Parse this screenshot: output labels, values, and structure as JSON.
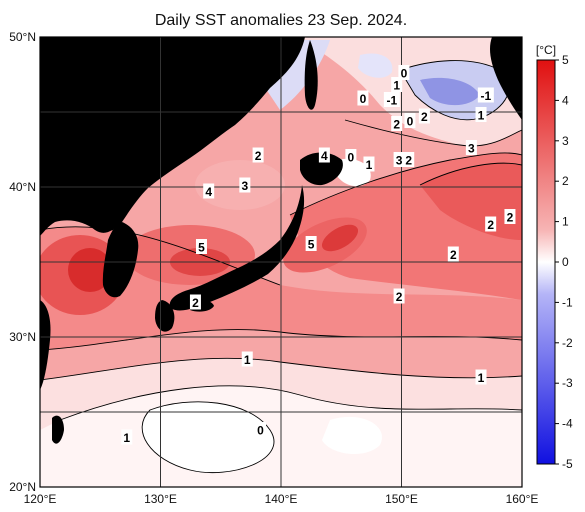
{
  "title": "Daily SST anomalies 23 Sep. 2024.",
  "colorbar": {
    "unit": "[°C]",
    "ticks": [
      "5",
      "4",
      "3",
      "2",
      "1",
      "0",
      "-1",
      "-2",
      "-3",
      "-4",
      "-5"
    ],
    "top_color": "#e01010",
    "mid_color": "#ffffff",
    "bottom_color": "#1010e0"
  },
  "axes": {
    "x_ticks": [
      "120°E",
      "130°E",
      "140°E",
      "150°E",
      "160°E"
    ],
    "y_ticks": [
      "50°N",
      "40°N",
      "30°N",
      "20°N"
    ],
    "lon_range": [
      120,
      160
    ],
    "lat_range": [
      20,
      50
    ]
  },
  "colors": {
    "land": "#505050",
    "grid": "#333333",
    "frame": "#000000"
  },
  "contour_labels": [
    {
      "text": "0",
      "lon": 150.2,
      "lat": 47.6
    },
    {
      "text": "1",
      "lon": 149.6,
      "lat": 46.8
    },
    {
      "text": "0",
      "lon": 146.8,
      "lat": 45.9
    },
    {
      "text": "-1",
      "lon": 149.2,
      "lat": 45.8
    },
    {
      "text": "-1",
      "lon": 157.0,
      "lat": 46.1
    },
    {
      "text": "1",
      "lon": 156.6,
      "lat": 44.8
    },
    {
      "text": "2",
      "lon": 149.6,
      "lat": 44.2
    },
    {
      "text": "0",
      "lon": 150.7,
      "lat": 44.4
    },
    {
      "text": "2",
      "lon": 151.9,
      "lat": 44.7
    },
    {
      "text": "3",
      "lon": 155.8,
      "lat": 42.6
    },
    {
      "text": "2",
      "lon": 138.1,
      "lat": 42.1
    },
    {
      "text": "4",
      "lon": 143.6,
      "lat": 42.1
    },
    {
      "text": "0",
      "lon": 145.8,
      "lat": 42.0
    },
    {
      "text": "1",
      "lon": 147.3,
      "lat": 41.5
    },
    {
      "text": "3",
      "lon": 149.8,
      "lat": 41.8
    },
    {
      "text": "2",
      "lon": 150.6,
      "lat": 41.8
    },
    {
      "text": "3",
      "lon": 137.0,
      "lat": 40.1
    },
    {
      "text": "4",
      "lon": 134.0,
      "lat": 39.7
    },
    {
      "text": "2",
      "lon": 159.0,
      "lat": 38.0
    },
    {
      "text": "2",
      "lon": 157.4,
      "lat": 37.5
    },
    {
      "text": "5",
      "lon": 133.4,
      "lat": 36.0
    },
    {
      "text": "5",
      "lon": 142.5,
      "lat": 36.2
    },
    {
      "text": "2",
      "lon": 154.3,
      "lat": 35.5
    },
    {
      "text": "2",
      "lon": 132.9,
      "lat": 32.3
    },
    {
      "text": "2",
      "lon": 149.8,
      "lat": 32.7
    },
    {
      "text": "1",
      "lon": 137.2,
      "lat": 28.5
    },
    {
      "text": "1",
      "lon": 156.6,
      "lat": 27.3
    },
    {
      "text": "0",
      "lon": 138.3,
      "lat": 23.8
    },
    {
      "text": "1",
      "lon": 127.2,
      "lat": 23.3
    }
  ]
}
